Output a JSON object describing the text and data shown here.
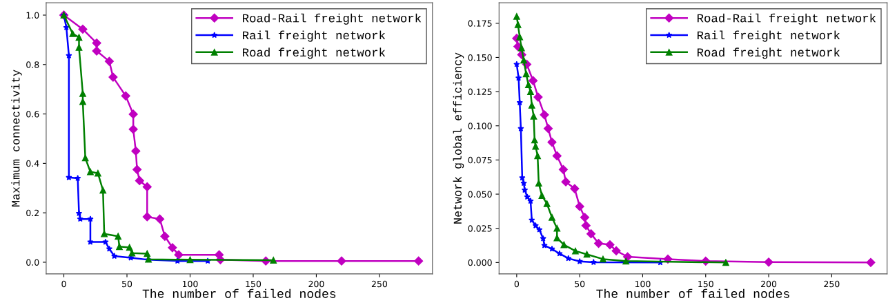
{
  "chart_data": [
    {
      "type": "line",
      "xlabel": "The number of failed nodes",
      "ylabel": "Maximum connectivity",
      "xlim": [
        -14,
        292
      ],
      "ylim": [
        -0.047,
        1.05
      ],
      "xticks": [
        0,
        50,
        100,
        150,
        200,
        250
      ],
      "yticks": [
        {
          "value": 0,
          "label": "0.0"
        },
        {
          "value": 0.2,
          "label": "0.2"
        },
        {
          "value": 0.4,
          "label": "0.4"
        },
        {
          "value": 0.6,
          "label": "0.6"
        },
        {
          "value": 0.8,
          "label": "0.8"
        },
        {
          "value": 1.0,
          "label": "1.0"
        }
      ],
      "legend": "top right",
      "grid": false,
      "series": [
        {
          "name": "Road-Rail freight network",
          "color": "#c000c0",
          "marker": "diamond",
          "x": [
            0,
            15,
            26,
            26,
            36,
            39,
            49,
            55,
            55,
            57,
            58,
            60,
            66,
            66,
            76,
            80,
            86,
            91,
            123,
            124,
            160,
            220,
            281
          ],
          "values": [
            1.0,
            0.943,
            0.887,
            0.855,
            0.813,
            0.749,
            0.673,
            0.599,
            0.538,
            0.45,
            0.375,
            0.33,
            0.305,
            0.184,
            0.175,
            0.105,
            0.059,
            0.03,
            0.03,
            0.01,
            0.005,
            0.005,
            0.005
          ]
        },
        {
          "name": "Rail freight network",
          "color": "#0000ff",
          "marker": "star",
          "x": [
            0,
            2,
            4,
            4,
            11,
            12,
            13,
            21,
            21,
            33,
            36,
            40,
            53,
            67,
            90,
            114
          ],
          "values": [
            1.0,
            0.95,
            0.836,
            0.343,
            0.34,
            0.198,
            0.175,
            0.175,
            0.082,
            0.082,
            0.054,
            0.025,
            0.018,
            0.01,
            0.005,
            0.005
          ]
        },
        {
          "name": "Road freight network",
          "color": "#008000",
          "marker": "triangle",
          "x": [
            0,
            7,
            12,
            12,
            15,
            15,
            17,
            21,
            27,
            31,
            32,
            43,
            44,
            52,
            54,
            66,
            67,
            100,
            166
          ],
          "values": [
            1.0,
            0.925,
            0.91,
            0.869,
            0.683,
            0.65,
            0.422,
            0.366,
            0.36,
            0.291,
            0.115,
            0.105,
            0.063,
            0.06,
            0.037,
            0.035,
            0.012,
            0.01,
            0.008
          ]
        }
      ]
    },
    {
      "type": "line",
      "xlabel": "The number of failed nodes",
      "ylabel": "Network global efficiency",
      "xlim": [
        -14,
        294
      ],
      "ylim": [
        -0.0083,
        0.19
      ],
      "xticks": [
        0,
        50,
        100,
        150,
        200,
        250
      ],
      "yticks": [
        {
          "value": 0,
          "label": "0.000"
        },
        {
          "value": 0.025,
          "label": "0.025"
        },
        {
          "value": 0.05,
          "label": "0.050"
        },
        {
          "value": 0.075,
          "label": "0.075"
        },
        {
          "value": 0.1,
          "label": "0.100"
        },
        {
          "value": 0.125,
          "label": "0.125"
        },
        {
          "value": 0.15,
          "label": "0.150"
        },
        {
          "value": 0.175,
          "label": "0.175"
        }
      ],
      "legend": "top right",
      "grid": false,
      "series": [
        {
          "name": "Road-Rail freight network",
          "color": "#c000c0",
          "marker": "diamond",
          "x": [
            0,
            1,
            4,
            8,
            13,
            17,
            22,
            25,
            28,
            32,
            37,
            39,
            46,
            50,
            54,
            55,
            59,
            65,
            74,
            79,
            88,
            120,
            150,
            200,
            281
          ],
          "values": [
            0.164,
            0.158,
            0.152,
            0.145,
            0.133,
            0.121,
            0.108,
            0.098,
            0.088,
            0.078,
            0.068,
            0.059,
            0.054,
            0.041,
            0.033,
            0.027,
            0.021,
            0.014,
            0.013,
            0.0085,
            0.0042,
            0.0025,
            0.001,
            0.0003,
            0.0
          ]
        },
        {
          "name": "Rail freight network",
          "color": "#0000ff",
          "marker": "star",
          "x": [
            0,
            1.5,
            2.4,
            3.3,
            4.4,
            5.6,
            6.4,
            8.4,
            11,
            12,
            15,
            18,
            21,
            22,
            28,
            34,
            41,
            50,
            61,
            114
          ],
          "values": [
            0.145,
            0.135,
            0.117,
            0.098,
            0.062,
            0.058,
            0.053,
            0.048,
            0.045,
            0.031,
            0.027,
            0.024,
            0.0175,
            0.0125,
            0.0099,
            0.0065,
            0.003,
            0.0008,
            0.0002,
            0.0
          ]
        },
        {
          "name": "Road freight network",
          "color": "#008000",
          "marker": "triangle",
          "x": [
            0,
            1,
            2.4,
            3.8,
            5.6,
            7.5,
            9.3,
            11,
            12,
            13.5,
            14.2,
            15,
            16.6,
            17.5,
            20,
            24,
            28,
            32,
            32,
            37.5,
            46.6,
            55.7,
            68.5,
            86.7,
            166
          ],
          "values": [
            0.18,
            0.174,
            0.165,
            0.157,
            0.148,
            0.138,
            0.13,
            0.125,
            0.115,
            0.107,
            0.0896,
            0.085,
            0.078,
            0.058,
            0.049,
            0.043,
            0.033,
            0.025,
            0.018,
            0.013,
            0.0084,
            0.006,
            0.0025,
            0.001,
            0.0
          ]
        }
      ]
    }
  ]
}
